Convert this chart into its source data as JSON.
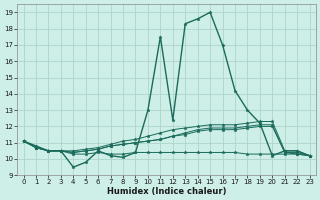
{
  "xlabel": "Humidex (Indice chaleur)",
  "xlim": [
    -0.5,
    23.5
  ],
  "ylim": [
    9,
    19.5
  ],
  "yticks": [
    9,
    10,
    11,
    12,
    13,
    14,
    15,
    16,
    17,
    18,
    19
  ],
  "xticks": [
    0,
    1,
    2,
    3,
    4,
    5,
    6,
    7,
    8,
    9,
    10,
    11,
    12,
    13,
    14,
    15,
    16,
    17,
    18,
    19,
    20,
    21,
    22,
    23
  ],
  "bg_color": "#ceeee8",
  "grid_color": "#aed4cc",
  "line_color": "#1a6b5a",
  "series": [
    [
      11.1,
      10.8,
      10.5,
      10.5,
      9.5,
      9.8,
      10.5,
      10.2,
      10.1,
      10.4,
      13.0,
      17.5,
      12.4,
      18.3,
      18.6,
      19.0,
      17.0,
      14.2,
      13.0,
      12.2,
      10.2,
      10.5,
      10.5,
      10.2
    ],
    [
      11.1,
      10.7,
      10.5,
      10.5,
      10.5,
      10.6,
      10.7,
      10.9,
      11.1,
      11.2,
      11.4,
      11.6,
      11.8,
      11.9,
      12.0,
      12.1,
      12.1,
      12.1,
      12.2,
      12.3,
      12.3,
      10.5,
      10.5,
      10.2
    ],
    [
      11.1,
      10.7,
      10.5,
      10.5,
      10.4,
      10.5,
      10.6,
      10.8,
      10.9,
      11.0,
      11.1,
      11.2,
      11.4,
      11.6,
      11.8,
      11.9,
      11.9,
      11.9,
      12.0,
      12.1,
      12.1,
      10.4,
      10.4,
      10.2
    ],
    [
      11.1,
      10.7,
      10.5,
      10.5,
      10.4,
      10.5,
      10.6,
      10.8,
      10.9,
      11.0,
      11.1,
      11.2,
      11.4,
      11.5,
      11.7,
      11.8,
      11.8,
      11.8,
      11.9,
      12.0,
      12.0,
      10.4,
      10.3,
      10.2
    ],
    [
      11.1,
      10.7,
      10.5,
      10.5,
      10.3,
      10.3,
      10.4,
      10.3,
      10.3,
      10.4,
      10.4,
      10.4,
      10.4,
      10.4,
      10.4,
      10.4,
      10.4,
      10.4,
      10.3,
      10.3,
      10.3,
      10.3,
      10.3,
      10.2
    ]
  ],
  "xlabel_fontsize": 6.0,
  "tick_fontsize": 5.0,
  "marker_size": 2.5
}
